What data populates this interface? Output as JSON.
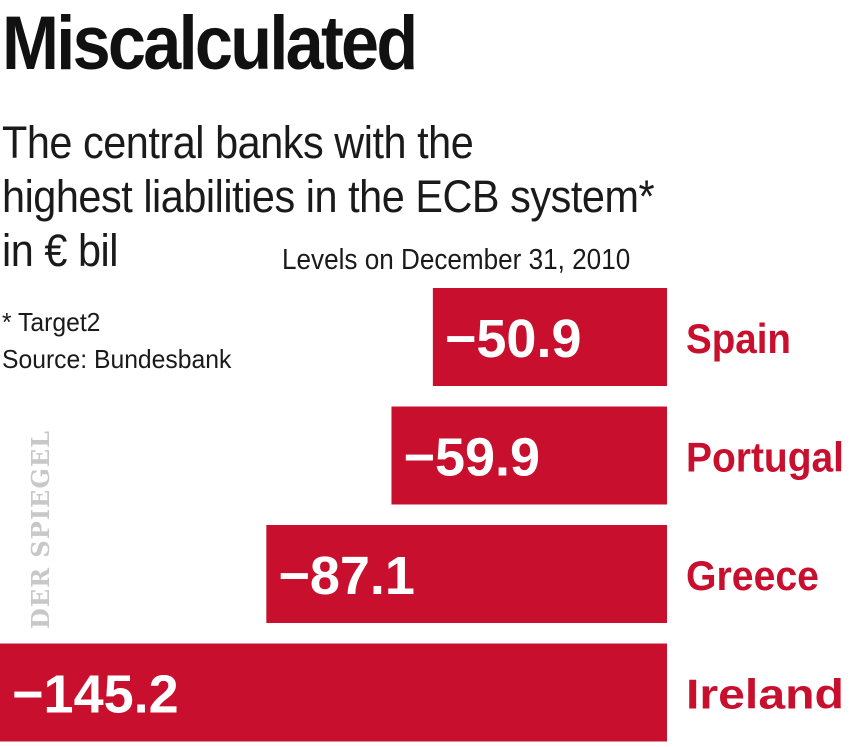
{
  "title": "Miscalculated",
  "subtitle_lines": [
    "The central banks with the",
    "highest liabilities in the ECB system*",
    "in € bil"
  ],
  "date_note": "Levels on December 31, 2010",
  "footnote": {
    "asterisk": "* Target2",
    "source": "Source: Bundesbank"
  },
  "watermark": "DER SPIEGEL",
  "colors": {
    "bar": "#c8102e",
    "label": "#c8102e",
    "bar_text": "#ffffff"
  },
  "chart_data": {
    "type": "bar",
    "orientation": "horizontal",
    "categories": [
      "Spain",
      "Portugal",
      "Greece",
      "Ireland"
    ],
    "values": [
      -50.9,
      -59.9,
      -87.1,
      -145.2
    ],
    "value_labels": [
      "−50.9",
      "−59.9",
      "−87.1",
      "−145.2"
    ],
    "grid": false,
    "legend": "none"
  }
}
